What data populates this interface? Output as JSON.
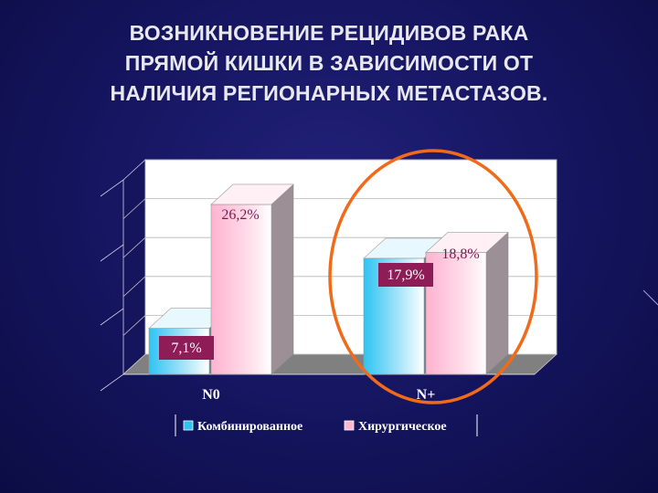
{
  "slide": {
    "title_lines": [
      "ВОЗНИКНОВЕНИЕ РЕЦИДИВОВ РАКА",
      "ПРЯМОЙ КИШКИ В ЗАВИСИМОСТИ ОТ",
      "НАЛИЧИЯ РЕГИОНАРНЫХ МЕТАСТАЗОВ."
    ]
  },
  "chart_data": {
    "type": "bar",
    "title": "",
    "xlabel": "",
    "ylabel": "",
    "categories": [
      "N0",
      "N+"
    ],
    "series": [
      {
        "name": "Комбинированное",
        "values": [
          7.1,
          17.9
        ],
        "labels": [
          "7,1%",
          "17,9%"
        ],
        "color": "#30c8f0"
      },
      {
        "name": "Хирургическое",
        "values": [
          26.2,
          18.8
        ],
        "labels": [
          "26,2%",
          "18,8%"
        ],
        "color": "#ffb6d0"
      }
    ],
    "ylim": [
      0,
      30
    ],
    "grid": true,
    "legend": "bottom",
    "highlight": {
      "category": "N+",
      "shape": "ellipse",
      "color": "#f06a1a"
    },
    "colors": {
      "wall": "#ffffff",
      "floor": "#7f7f7f",
      "label_bg": "#8e1d57",
      "axis_text": "#ffffff"
    }
  }
}
